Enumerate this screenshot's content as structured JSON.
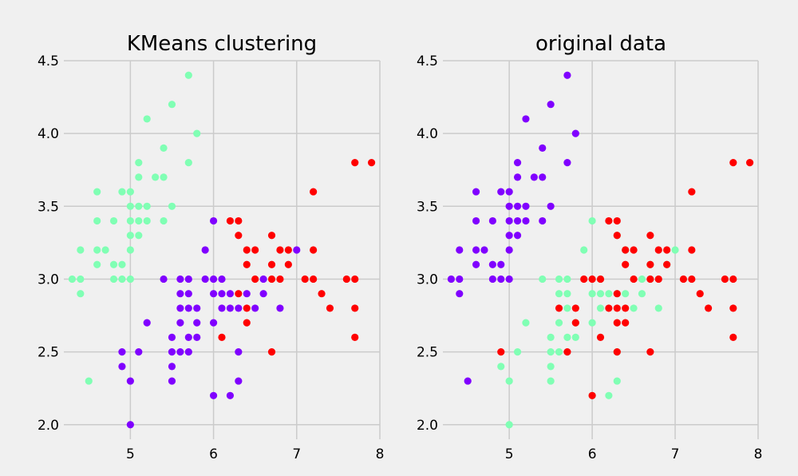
{
  "colors": {
    "background": "#f0f0f0",
    "grid": "#cbcbcb",
    "cluster_purple": "#8000ff",
    "cluster_green": "#80ffb4",
    "cluster_red": "#ff0000"
  },
  "chart_data": [
    {
      "type": "scatter",
      "title": "KMeans clustering",
      "xlabel": "",
      "ylabel": "",
      "xlim": [
        4.2,
        8.0
      ],
      "ylim": [
        1.9,
        4.5
      ],
      "xticks": [
        5,
        6,
        7,
        8
      ],
      "yticks": [
        2.0,
        2.5,
        3.0,
        3.5,
        4.0,
        4.5
      ],
      "xtick_labels": [
        "5",
        "6",
        "7",
        "8"
      ],
      "ytick_labels": [
        "2.0",
        "2.5",
        "3.0",
        "3.5",
        "4.0",
        "4.5"
      ],
      "grid": true,
      "series": [
        {
          "color": "#80ffb4",
          "points": [
            [
              4.3,
              3.0
            ],
            [
              4.4,
              3.0
            ],
            [
              4.4,
              2.9
            ],
            [
              4.4,
              3.2
            ],
            [
              4.5,
              2.3
            ],
            [
              4.6,
              3.1
            ],
            [
              4.6,
              3.2
            ],
            [
              4.6,
              3.4
            ],
            [
              4.6,
              3.6
            ],
            [
              4.7,
              3.2
            ],
            [
              4.8,
              3.0
            ],
            [
              4.8,
              3.1
            ],
            [
              4.8,
              3.4
            ],
            [
              4.9,
              3.0
            ],
            [
              4.9,
              3.1
            ],
            [
              4.9,
              3.6
            ],
            [
              5.0,
              3.0
            ],
            [
              5.0,
              3.2
            ],
            [
              5.0,
              3.3
            ],
            [
              5.0,
              3.4
            ],
            [
              5.0,
              3.5
            ],
            [
              5.0,
              3.6
            ],
            [
              5.1,
              3.3
            ],
            [
              5.1,
              3.4
            ],
            [
              5.1,
              3.5
            ],
            [
              5.1,
              3.7
            ],
            [
              5.1,
              3.8
            ],
            [
              5.2,
              3.4
            ],
            [
              5.2,
              3.5
            ],
            [
              5.2,
              4.1
            ],
            [
              5.3,
              3.7
            ],
            [
              5.4,
              3.4
            ],
            [
              5.4,
              3.7
            ],
            [
              5.4,
              3.9
            ],
            [
              5.5,
              3.5
            ],
            [
              5.5,
              4.2
            ],
            [
              5.7,
              3.8
            ],
            [
              5.7,
              4.4
            ],
            [
              5.8,
              4.0
            ]
          ]
        },
        {
          "color": "#8000ff",
          "points": [
            [
              4.9,
              2.4
            ],
            [
              4.9,
              2.5
            ],
            [
              5.0,
              2.0
            ],
            [
              5.0,
              2.3
            ],
            [
              5.1,
              2.5
            ],
            [
              5.2,
              2.7
            ],
            [
              5.4,
              3.0
            ],
            [
              5.5,
              2.3
            ],
            [
              5.5,
              2.4
            ],
            [
              5.5,
              2.5
            ],
            [
              5.5,
              2.6
            ],
            [
              5.6,
              2.5
            ],
            [
              5.6,
              2.7
            ],
            [
              5.6,
              2.8
            ],
            [
              5.6,
              2.9
            ],
            [
              5.6,
              3.0
            ],
            [
              5.7,
              2.5
            ],
            [
              5.7,
              2.6
            ],
            [
              5.7,
              2.8
            ],
            [
              5.7,
              2.9
            ],
            [
              5.7,
              3.0
            ],
            [
              5.8,
              2.6
            ],
            [
              5.8,
              2.7
            ],
            [
              5.8,
              2.8
            ],
            [
              5.9,
              3.0
            ],
            [
              5.9,
              3.2
            ],
            [
              6.0,
              2.2
            ],
            [
              6.0,
              2.7
            ],
            [
              6.0,
              2.9
            ],
            [
              6.0,
              3.0
            ],
            [
              6.0,
              3.4
            ],
            [
              6.1,
              2.8
            ],
            [
              6.1,
              2.9
            ],
            [
              6.1,
              3.0
            ],
            [
              6.2,
              2.2
            ],
            [
              6.2,
              2.8
            ],
            [
              6.2,
              2.9
            ],
            [
              6.3,
              2.3
            ],
            [
              6.3,
              2.5
            ],
            [
              6.3,
              2.8
            ],
            [
              6.4,
              2.9
            ],
            [
              6.5,
              2.8
            ],
            [
              6.6,
              2.9
            ],
            [
              6.6,
              3.0
            ],
            [
              6.8,
              2.8
            ],
            [
              7.0,
              3.2
            ]
          ]
        },
        {
          "color": "#ff0000",
          "points": [
            [
              6.1,
              2.6
            ],
            [
              6.2,
              3.4
            ],
            [
              6.3,
              2.9
            ],
            [
              6.3,
              3.3
            ],
            [
              6.3,
              3.4
            ],
            [
              6.4,
              2.7
            ],
            [
              6.4,
              2.8
            ],
            [
              6.4,
              3.1
            ],
            [
              6.4,
              3.2
            ],
            [
              6.5,
              3.0
            ],
            [
              6.5,
              3.2
            ],
            [
              6.7,
              2.5
            ],
            [
              6.7,
              3.0
            ],
            [
              6.7,
              3.1
            ],
            [
              6.7,
              3.3
            ],
            [
              6.8,
              3.0
            ],
            [
              6.8,
              3.2
            ],
            [
              6.9,
              3.1
            ],
            [
              6.9,
              3.2
            ],
            [
              7.1,
              3.0
            ],
            [
              7.2,
              3.0
            ],
            [
              7.2,
              3.2
            ],
            [
              7.2,
              3.6
            ],
            [
              7.3,
              2.9
            ],
            [
              7.4,
              2.8
            ],
            [
              7.6,
              3.0
            ],
            [
              7.7,
              2.6
            ],
            [
              7.7,
              2.8
            ],
            [
              7.7,
              3.0
            ],
            [
              7.7,
              3.8
            ],
            [
              7.9,
              3.8
            ]
          ]
        }
      ]
    },
    {
      "type": "scatter",
      "title": "original data",
      "xlabel": "",
      "ylabel": "",
      "xlim": [
        4.2,
        8.0
      ],
      "ylim": [
        1.9,
        4.5
      ],
      "xticks": [
        5,
        6,
        7,
        8
      ],
      "yticks": [
        2.0,
        2.5,
        3.0,
        3.5,
        4.0,
        4.5
      ],
      "xtick_labels": [
        "5",
        "6",
        "7",
        "8"
      ],
      "ytick_labels": [
        "2.0",
        "2.5",
        "3.0",
        "3.5",
        "4.0",
        "4.5"
      ],
      "grid": true,
      "series": [
        {
          "color": "#8000ff",
          "points": [
            [
              4.3,
              3.0
            ],
            [
              4.4,
              3.0
            ],
            [
              4.4,
              2.9
            ],
            [
              4.4,
              3.2
            ],
            [
              4.5,
              2.3
            ],
            [
              4.6,
              3.1
            ],
            [
              4.6,
              3.2
            ],
            [
              4.6,
              3.4
            ],
            [
              4.6,
              3.6
            ],
            [
              4.7,
              3.2
            ],
            [
              4.8,
              3.0
            ],
            [
              4.8,
              3.1
            ],
            [
              4.8,
              3.4
            ],
            [
              4.9,
              3.0
            ],
            [
              4.9,
              3.1
            ],
            [
              4.9,
              3.6
            ],
            [
              5.0,
              3.0
            ],
            [
              5.0,
              3.2
            ],
            [
              5.0,
              3.3
            ],
            [
              5.0,
              3.4
            ],
            [
              5.0,
              3.5
            ],
            [
              5.0,
              3.6
            ],
            [
              5.1,
              3.3
            ],
            [
              5.1,
              3.4
            ],
            [
              5.1,
              3.5
            ],
            [
              5.1,
              3.7
            ],
            [
              5.1,
              3.8
            ],
            [
              5.2,
              3.4
            ],
            [
              5.2,
              3.5
            ],
            [
              5.2,
              4.1
            ],
            [
              5.3,
              3.7
            ],
            [
              5.4,
              3.4
            ],
            [
              5.4,
              3.7
            ],
            [
              5.4,
              3.9
            ],
            [
              5.5,
              3.5
            ],
            [
              5.5,
              4.2
            ],
            [
              5.7,
              3.8
            ],
            [
              5.7,
              4.4
            ],
            [
              5.8,
              4.0
            ]
          ]
        },
        {
          "color": "#80ffb4",
          "points": [
            [
              4.9,
              2.4
            ],
            [
              5.0,
              2.0
            ],
            [
              5.0,
              2.3
            ],
            [
              5.1,
              2.5
            ],
            [
              5.2,
              2.7
            ],
            [
              5.4,
              3.0
            ],
            [
              5.5,
              2.3
            ],
            [
              5.5,
              2.4
            ],
            [
              5.5,
              2.5
            ],
            [
              5.5,
              2.6
            ],
            [
              5.6,
              2.5
            ],
            [
              5.6,
              2.7
            ],
            [
              5.6,
              2.9
            ],
            [
              5.6,
              3.0
            ],
            [
              5.7,
              2.6
            ],
            [
              5.7,
              2.8
            ],
            [
              5.7,
              2.9
            ],
            [
              5.7,
              3.0
            ],
            [
              5.8,
              2.6
            ],
            [
              5.8,
              2.7
            ],
            [
              5.9,
              3.2
            ],
            [
              6.0,
              2.2
            ],
            [
              6.0,
              2.7
            ],
            [
              6.0,
              2.9
            ],
            [
              6.0,
              3.4
            ],
            [
              6.1,
              2.8
            ],
            [
              6.1,
              2.9
            ],
            [
              6.1,
              3.0
            ],
            [
              6.2,
              2.2
            ],
            [
              6.2,
              2.9
            ],
            [
              6.3,
              2.3
            ],
            [
              6.3,
              2.5
            ],
            [
              6.3,
              2.9
            ],
            [
              6.3,
              3.3
            ],
            [
              6.4,
              2.9
            ],
            [
              6.4,
              3.2
            ],
            [
              6.5,
              2.8
            ],
            [
              6.6,
              2.9
            ],
            [
              6.6,
              3.0
            ],
            [
              6.7,
              3.0
            ],
            [
              6.7,
              3.1
            ],
            [
              6.8,
              2.8
            ],
            [
              6.9,
              3.1
            ],
            [
              7.0,
              3.2
            ]
          ]
        },
        {
          "color": "#ff0000",
          "points": [
            [
              4.9,
              2.5
            ],
            [
              5.6,
              2.8
            ],
            [
              5.7,
              2.5
            ],
            [
              5.8,
              2.7
            ],
            [
              5.8,
              2.8
            ],
            [
              5.9,
              3.0
            ],
            [
              6.0,
              2.2
            ],
            [
              6.0,
              3.0
            ],
            [
              6.1,
              2.6
            ],
            [
              6.1,
              3.0
            ],
            [
              6.2,
              2.8
            ],
            [
              6.2,
              3.4
            ],
            [
              6.3,
              2.5
            ],
            [
              6.3,
              2.7
            ],
            [
              6.3,
              2.8
            ],
            [
              6.3,
              2.9
            ],
            [
              6.3,
              3.3
            ],
            [
              6.3,
              3.4
            ],
            [
              6.4,
              2.7
            ],
            [
              6.4,
              2.8
            ],
            [
              6.4,
              3.1
            ],
            [
              6.4,
              3.2
            ],
            [
              6.5,
              3.0
            ],
            [
              6.5,
              3.2
            ],
            [
              6.7,
              2.5
            ],
            [
              6.7,
              3.0
            ],
            [
              6.7,
              3.1
            ],
            [
              6.7,
              3.3
            ],
            [
              6.8,
              3.0
            ],
            [
              6.8,
              3.2
            ],
            [
              6.9,
              3.1
            ],
            [
              6.9,
              3.2
            ],
            [
              7.1,
              3.0
            ],
            [
              7.2,
              3.0
            ],
            [
              7.2,
              3.2
            ],
            [
              7.2,
              3.6
            ],
            [
              7.3,
              2.9
            ],
            [
              7.4,
              2.8
            ],
            [
              7.6,
              3.0
            ],
            [
              7.7,
              2.6
            ],
            [
              7.7,
              2.8
            ],
            [
              7.7,
              3.0
            ],
            [
              7.7,
              3.8
            ],
            [
              7.9,
              3.8
            ]
          ]
        }
      ]
    }
  ]
}
